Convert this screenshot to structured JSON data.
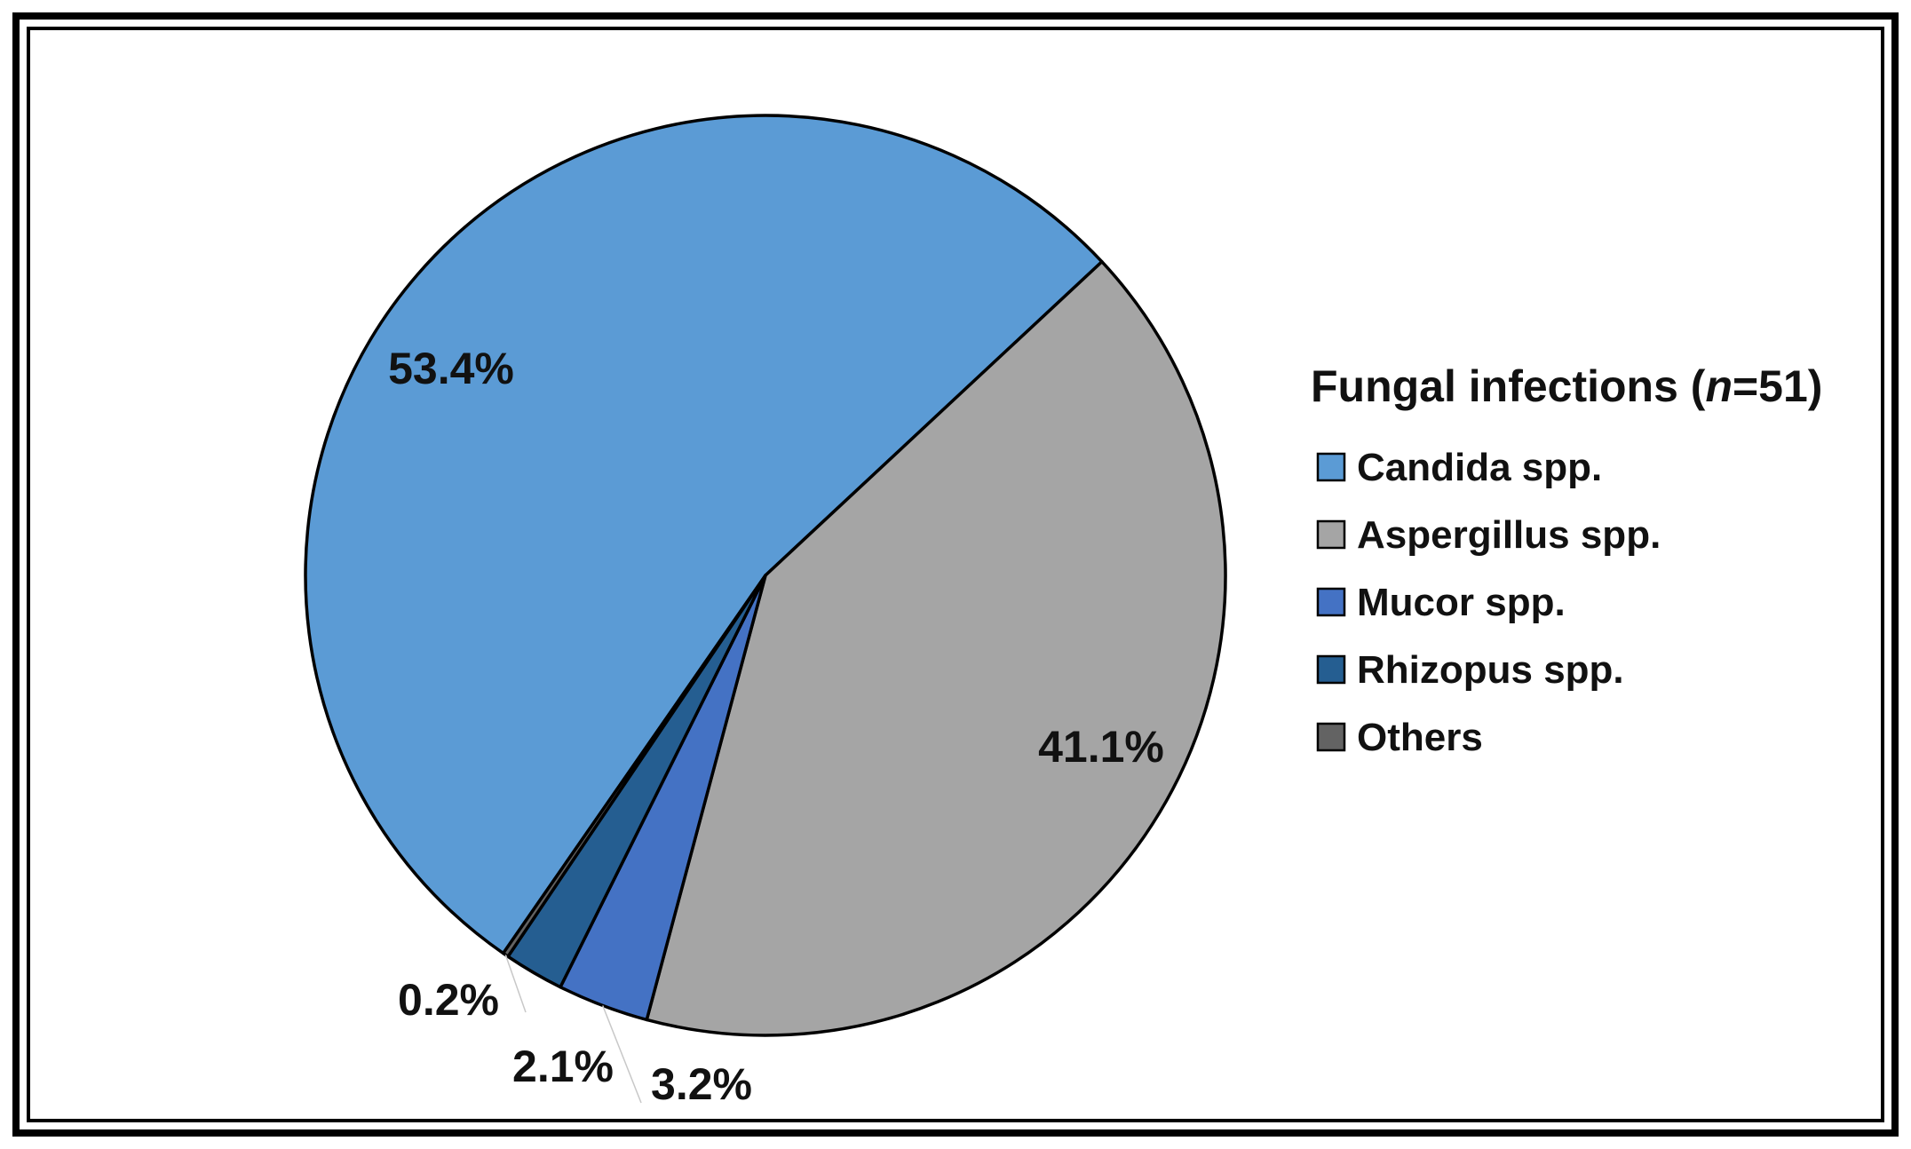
{
  "chart_data": {
    "type": "pie",
    "legend": {
      "title_prefix": "Fungal infections (",
      "title_italic": "n",
      "title_suffix": "=51)",
      "placement": "right"
    },
    "series": [
      {
        "name": "Candida spp.",
        "value": 53.4,
        "label": "53.4%",
        "color": "#5b9bd5"
      },
      {
        "name": "Aspergillus spp.",
        "value": 41.1,
        "label": "41.1%",
        "color": "#a5a5a5"
      },
      {
        "name": "Mucor spp.",
        "value": 3.2,
        "label": "3.2%",
        "color": "#4472c4"
      },
      {
        "name": "Rhizopus spp.",
        "value": 2.1,
        "label": "2.1%",
        "color": "#255e91"
      },
      {
        "name": "Others",
        "value": 0.2,
        "label": "0.2%",
        "color": "#636363"
      }
    ]
  }
}
